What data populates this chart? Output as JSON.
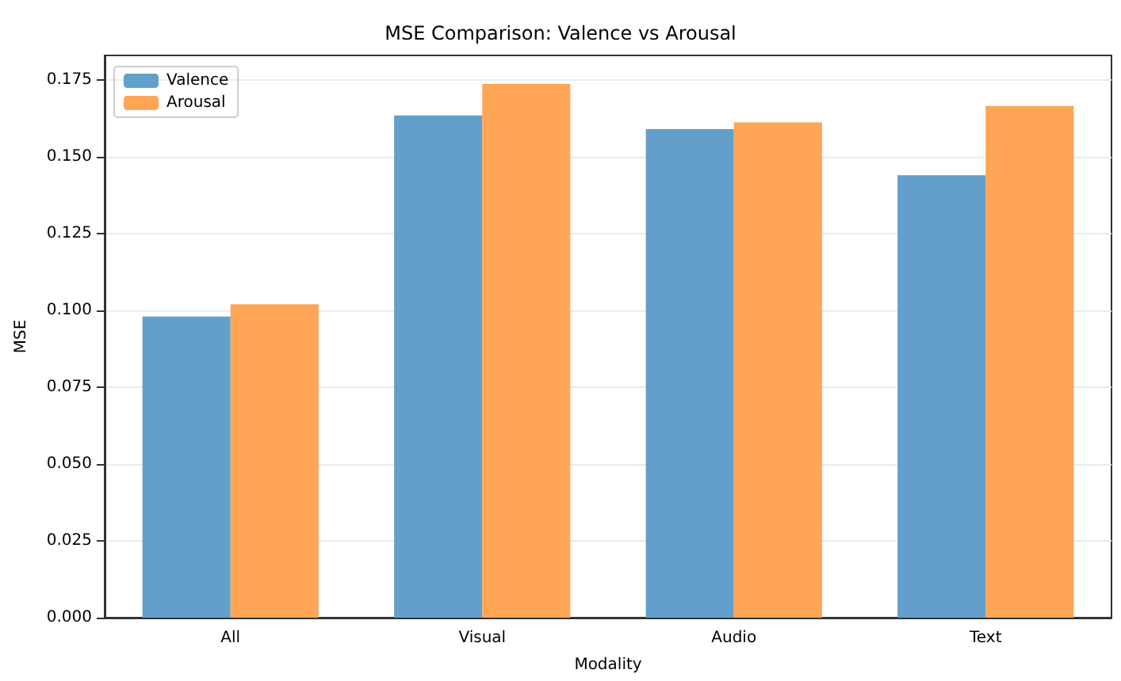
{
  "chart_data": {
    "type": "bar",
    "title": "MSE Comparison: Valence vs Arousal",
    "xlabel": "Modality",
    "ylabel": "MSE",
    "categories": [
      "All",
      "Visual",
      "Audio",
      "Text"
    ],
    "series": [
      {
        "name": "Valence",
        "color": "#62a0cb",
        "values": [
          0.098,
          0.1635,
          0.159,
          0.144
        ]
      },
      {
        "name": "Arousal",
        "color": "#ffa556",
        "values": [
          0.102,
          0.1737,
          0.1612,
          0.1666
        ]
      }
    ],
    "ylim": [
      0,
      0.183
    ],
    "yticks": [
      {
        "value": 0,
        "label": "0.000"
      },
      0.025,
      {
        "value": 0.05,
        "label": "0.050"
      },
      0.075,
      {
        "value": 0.1,
        "label": "0.100"
      },
      0.125,
      {
        "value": 0.15,
        "label": "0.150"
      },
      0.175
    ],
    "grid": "y",
    "legend": "top left"
  }
}
